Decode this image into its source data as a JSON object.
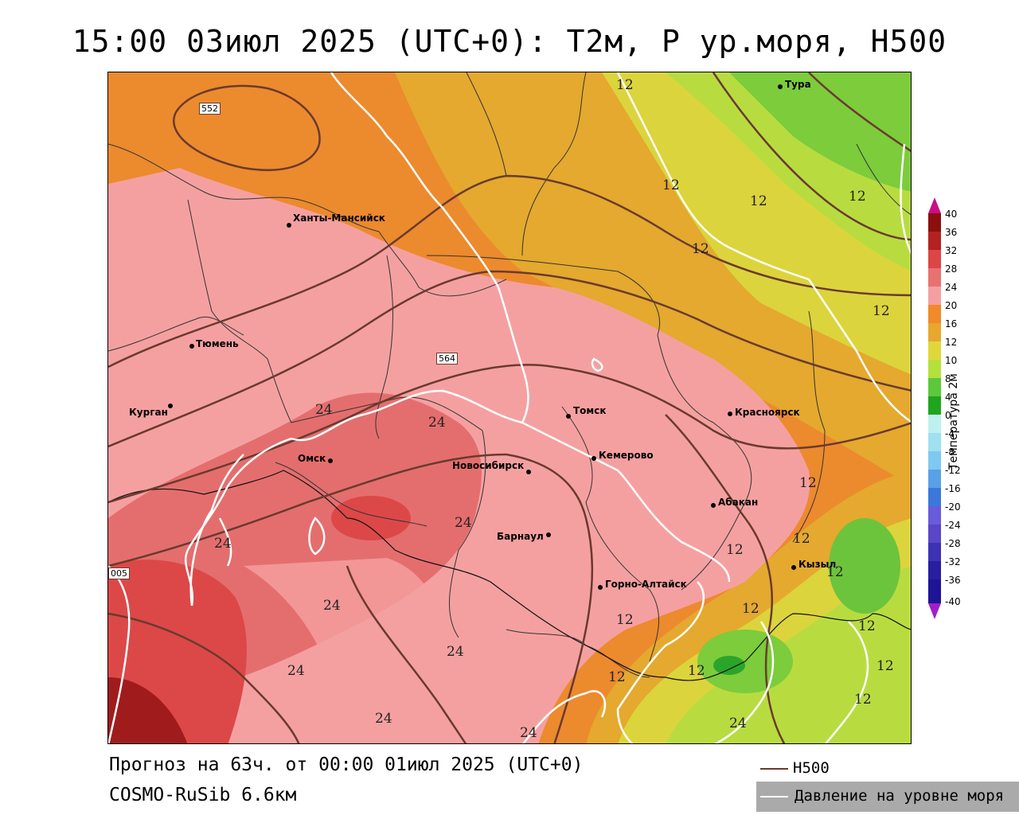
{
  "title": "15:00 03июл 2025 (UTC+0): T2м, P ур.моря, H500",
  "cities": [
    {
      "name": "Тура"
    },
    {
      "name": "Ханты-Мансийск"
    },
    {
      "name": "Тюмень"
    },
    {
      "name": "Курган"
    },
    {
      "name": "Омск"
    },
    {
      "name": "Томск"
    },
    {
      "name": "Красноярск"
    },
    {
      "name": "Кемерово"
    },
    {
      "name": "Новосибирск"
    },
    {
      "name": "Абакан"
    },
    {
      "name": "Барнаул"
    },
    {
      "name": "Горно-Алтайск"
    },
    {
      "name": "Кызыл"
    }
  ],
  "h500_labels": [
    "552",
    "564",
    "005"
  ],
  "isotherm_labels": [
    "12",
    "12",
    "12",
    "12",
    "12",
    "12",
    "12",
    "12",
    "12",
    "12",
    "12",
    "12",
    "12",
    "12",
    "12",
    "12",
    "12",
    "24",
    "24",
    "24",
    "24",
    "24",
    "24",
    "24",
    "24",
    "24",
    "24"
  ],
  "legend": {
    "title": "Температура 2м",
    "ticks": [
      "40",
      "36",
      "32",
      "28",
      "24",
      "20",
      "16",
      "12",
      "10",
      "8",
      "4",
      "0",
      "-4",
      "-8",
      "-12",
      "-16",
      "-20",
      "-24",
      "-28",
      "-32",
      "-36",
      "-40"
    ],
    "colors": [
      "#c80f86",
      "#8c0f0f",
      "#b42121",
      "#dc4646",
      "#e87272",
      "#f5a0a0",
      "#f08a2a",
      "#e6a82e",
      "#e0d83a",
      "#b4e03c",
      "#5cc83c",
      "#1fa51f",
      "#bff0f0",
      "#a0e0f0",
      "#80c8f0",
      "#5aa0e6",
      "#3c78dc",
      "#6a5adc",
      "#5a46c8",
      "#3c32b4",
      "#281ea0",
      "#1e1496",
      "#a01ec8"
    ]
  },
  "footer": {
    "forecast": "Прогноз на 63ч. от 00:00 01июл 2025 (UTC+0)",
    "model": "COSMO-RuSib 6.6км"
  },
  "key": {
    "h500": "H500",
    "h500_color": "#6a3a2e",
    "pressure": "Давление на уровне моря",
    "pressure_color": "#ffffff"
  }
}
